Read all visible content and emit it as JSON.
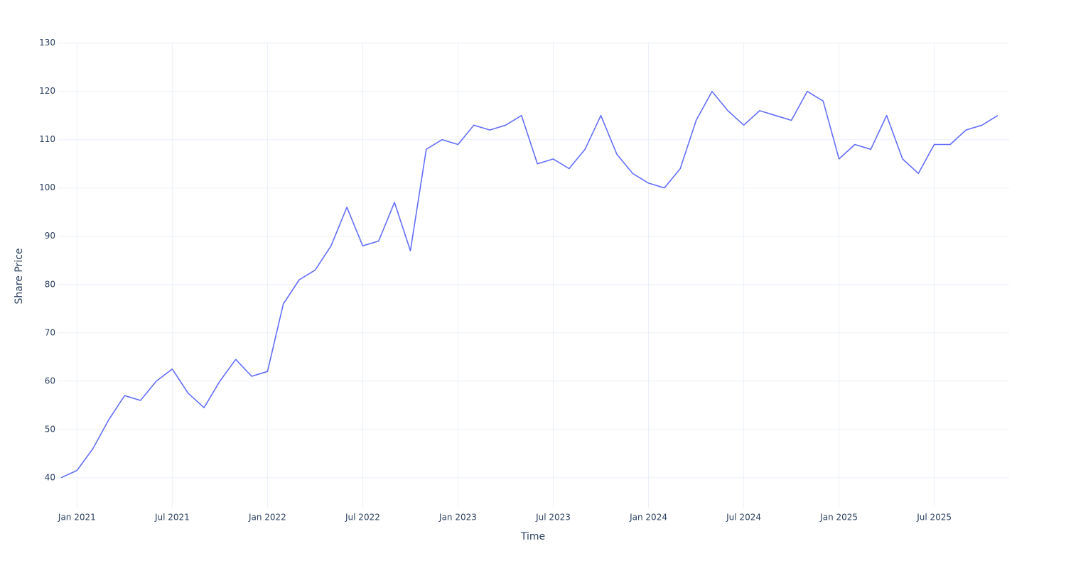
{
  "chart_data": {
    "type": "line",
    "x_label": "Time",
    "y_label": "Share Price",
    "x": [
      "2020-12",
      "2021-01",
      "2021-02",
      "2021-03",
      "2021-04",
      "2021-05",
      "2021-06",
      "2021-07",
      "2021-08",
      "2021-09",
      "2021-10",
      "2021-11",
      "2021-12",
      "2022-01",
      "2022-02",
      "2022-03",
      "2022-04",
      "2022-05",
      "2022-06",
      "2022-07",
      "2022-08",
      "2022-09",
      "2022-10",
      "2022-11",
      "2022-12",
      "2023-01",
      "2023-02",
      "2023-03",
      "2023-04",
      "2023-05",
      "2023-06",
      "2023-07",
      "2023-08",
      "2023-09",
      "2023-10",
      "2023-11",
      "2023-12",
      "2024-01",
      "2024-02",
      "2024-03",
      "2024-04",
      "2024-05",
      "2024-06",
      "2024-07",
      "2024-08",
      "2024-09",
      "2024-10",
      "2024-11",
      "2024-12",
      "2025-01",
      "2025-02",
      "2025-03",
      "2025-04",
      "2025-05",
      "2025-06",
      "2025-07",
      "2025-08",
      "2025-09",
      "2025-10",
      "2025-11"
    ],
    "series": [
      {
        "name": "Share Price",
        "color": "#636efa",
        "values": [
          40,
          41.5,
          46,
          52,
          57,
          56,
          60,
          62.5,
          57.5,
          54.5,
          60,
          64.5,
          61,
          62,
          76,
          81,
          83,
          88,
          96,
          88,
          89,
          97,
          87,
          108,
          110,
          109,
          113,
          112,
          113,
          115,
          105,
          106,
          104,
          108,
          115,
          107,
          103,
          101,
          100,
          104,
          114,
          120,
          116,
          113,
          116,
          115,
          114,
          120,
          118,
          106,
          109,
          108,
          115,
          106,
          103,
          109,
          109,
          112,
          113,
          115
        ]
      }
    ],
    "xlim": [
      "2020-12",
      "2025-11"
    ],
    "xticks": [
      {
        "value": "2021-01",
        "label": "Jan 2021"
      },
      {
        "value": "2021-07",
        "label": "Jul 2021"
      },
      {
        "value": "2022-01",
        "label": "Jan 2022"
      },
      {
        "value": "2022-07",
        "label": "Jul 2022"
      },
      {
        "value": "2023-01",
        "label": "Jan 2023"
      },
      {
        "value": "2023-07",
        "label": "Jul 2023"
      },
      {
        "value": "2024-01",
        "label": "Jan 2024"
      },
      {
        "value": "2024-07",
        "label": "Jul 2024"
      },
      {
        "value": "2025-01",
        "label": "Jan 2025"
      },
      {
        "value": "2025-07",
        "label": "Jul 2025"
      }
    ],
    "ylim": [
      33.8,
      130.1
    ],
    "yticks": [
      40,
      50,
      60,
      70,
      80,
      90,
      100,
      110,
      120,
      130
    ],
    "grid": true
  }
}
